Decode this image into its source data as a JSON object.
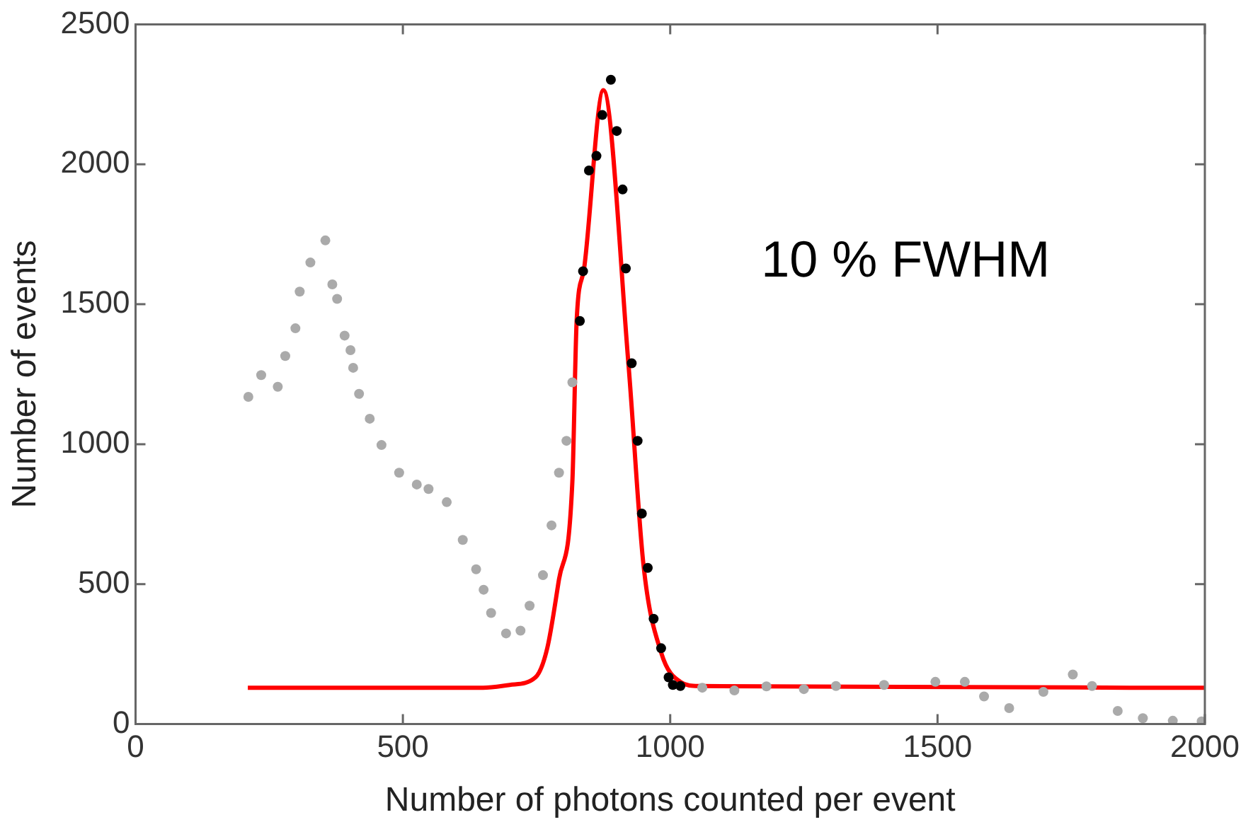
{
  "chart_data": {
    "type": "scatter",
    "xlabel": "Number of photons counted per event",
    "ylabel": "Number of events",
    "xlim": [
      0,
      2000
    ],
    "xticks": [
      0,
      500,
      1000,
      1500,
      2000
    ],
    "ylim": [
      0,
      2500
    ],
    "yticks": [
      0,
      500,
      1000,
      1500,
      2000,
      2500
    ],
    "grid": false,
    "legend": false,
    "marker": "circle",
    "annotations": [
      "10 % FWHM"
    ],
    "series": [
      {
        "type": "scatter",
        "color": "#aaaaaa",
        "x": [
          211,
          235,
          266,
          280,
          299,
          307,
          327,
          355,
          368,
          377,
          391,
          402,
          407,
          418,
          438,
          460,
          493,
          526,
          548,
          582,
          612,
          637,
          651,
          665,
          693,
          720,
          737,
          762,
          778,
          792,
          806,
          817,
          1060,
          1120,
          1180,
          1250,
          1310,
          1400,
          1496,
          1551,
          1587,
          1634,
          1698,
          1753,
          1789,
          1837,
          1884,
          1940,
          1994
        ],
        "values": [
          1169,
          1247,
          1205,
          1315,
          1414,
          1545,
          1649,
          1728,
          1571,
          1519,
          1388,
          1336,
          1273,
          1180,
          1091,
          997,
          898,
          856,
          840,
          793,
          658,
          553,
          480,
          397,
          324,
          334,
          423,
          532,
          710,
          898,
          1012,
          1221,
          130,
          120,
          135,
          125,
          136,
          140,
          151,
          151,
          99,
          57,
          115,
          177,
          136,
          47,
          21,
          12,
          10
        ]
      },
      {
        "type": "scatter",
        "color": "#000000",
        "x": [
          831,
          837,
          848,
          862,
          873,
          889,
          900,
          911,
          917,
          928,
          939,
          947,
          958,
          969,
          983,
          997,
          1005,
          1019
        ],
        "values": [
          1440,
          1618,
          1978,
          2030,
          2176,
          2302,
          2119,
          1910,
          1628,
          1289,
          1012,
          752,
          558,
          376,
          271,
          167,
          140,
          136
        ]
      },
      {
        "type": "line",
        "color": "#ff0000",
        "marker": "none",
        "x": [
          210,
          650,
          700,
          748,
          770,
          792,
          817,
          825,
          839,
          875,
          922,
          950,
          983,
          1019,
          1053,
          2000
        ],
        "values": [
          130,
          130,
          140,
          167,
          271,
          517,
          866,
          1440,
          1628,
          2265,
          1284,
          569,
          256,
          151,
          136,
          130
        ]
      }
    ]
  }
}
